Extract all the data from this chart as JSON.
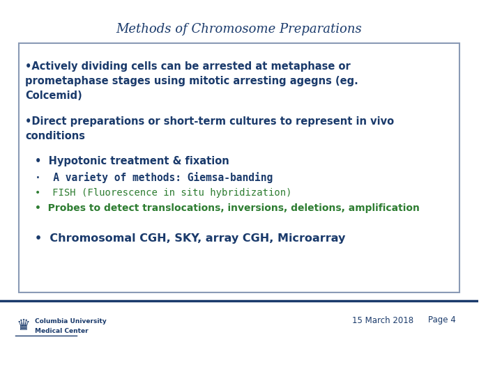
{
  "title": "Methods of Chromosome Preparations",
  "title_color": "#1a3a6b",
  "title_fontsize": 13,
  "bg_color": "#ffffff",
  "box_border_color": "#8a9ab5",
  "footer_line_color": "#1a3a6b",
  "footer_date": "15 March 2018",
  "footer_page": "Page 4",
  "footer_color": "#1a3a6b",
  "footer_fontsize": 8.5,
  "dark_blue": "#1a3a6b",
  "green": "#2e7d32",
  "bullet1_text": "•Actively dividing cells can be arrested at metaphase or\nprometaphase stages using mitotic arresting agegns (eg.\nColcemid)",
  "bullet2_text": "•Direct preparations or short-term cultures to represent in vivo\nconditions",
  "sub1": "Hypotonic treatment & fixation",
  "sub2": "A variety of methods: Giemsa-banding",
  "sub3": "FISH (Fluorescence in situ hybridization)",
  "sub4": "Probes to detect translocations, inversions, deletions, amplification",
  "sub5": "Chromosomal CGH, SKY, array CGH, Microarray",
  "cumc_name1": "Columbia University",
  "cumc_name2": "Medical Center"
}
